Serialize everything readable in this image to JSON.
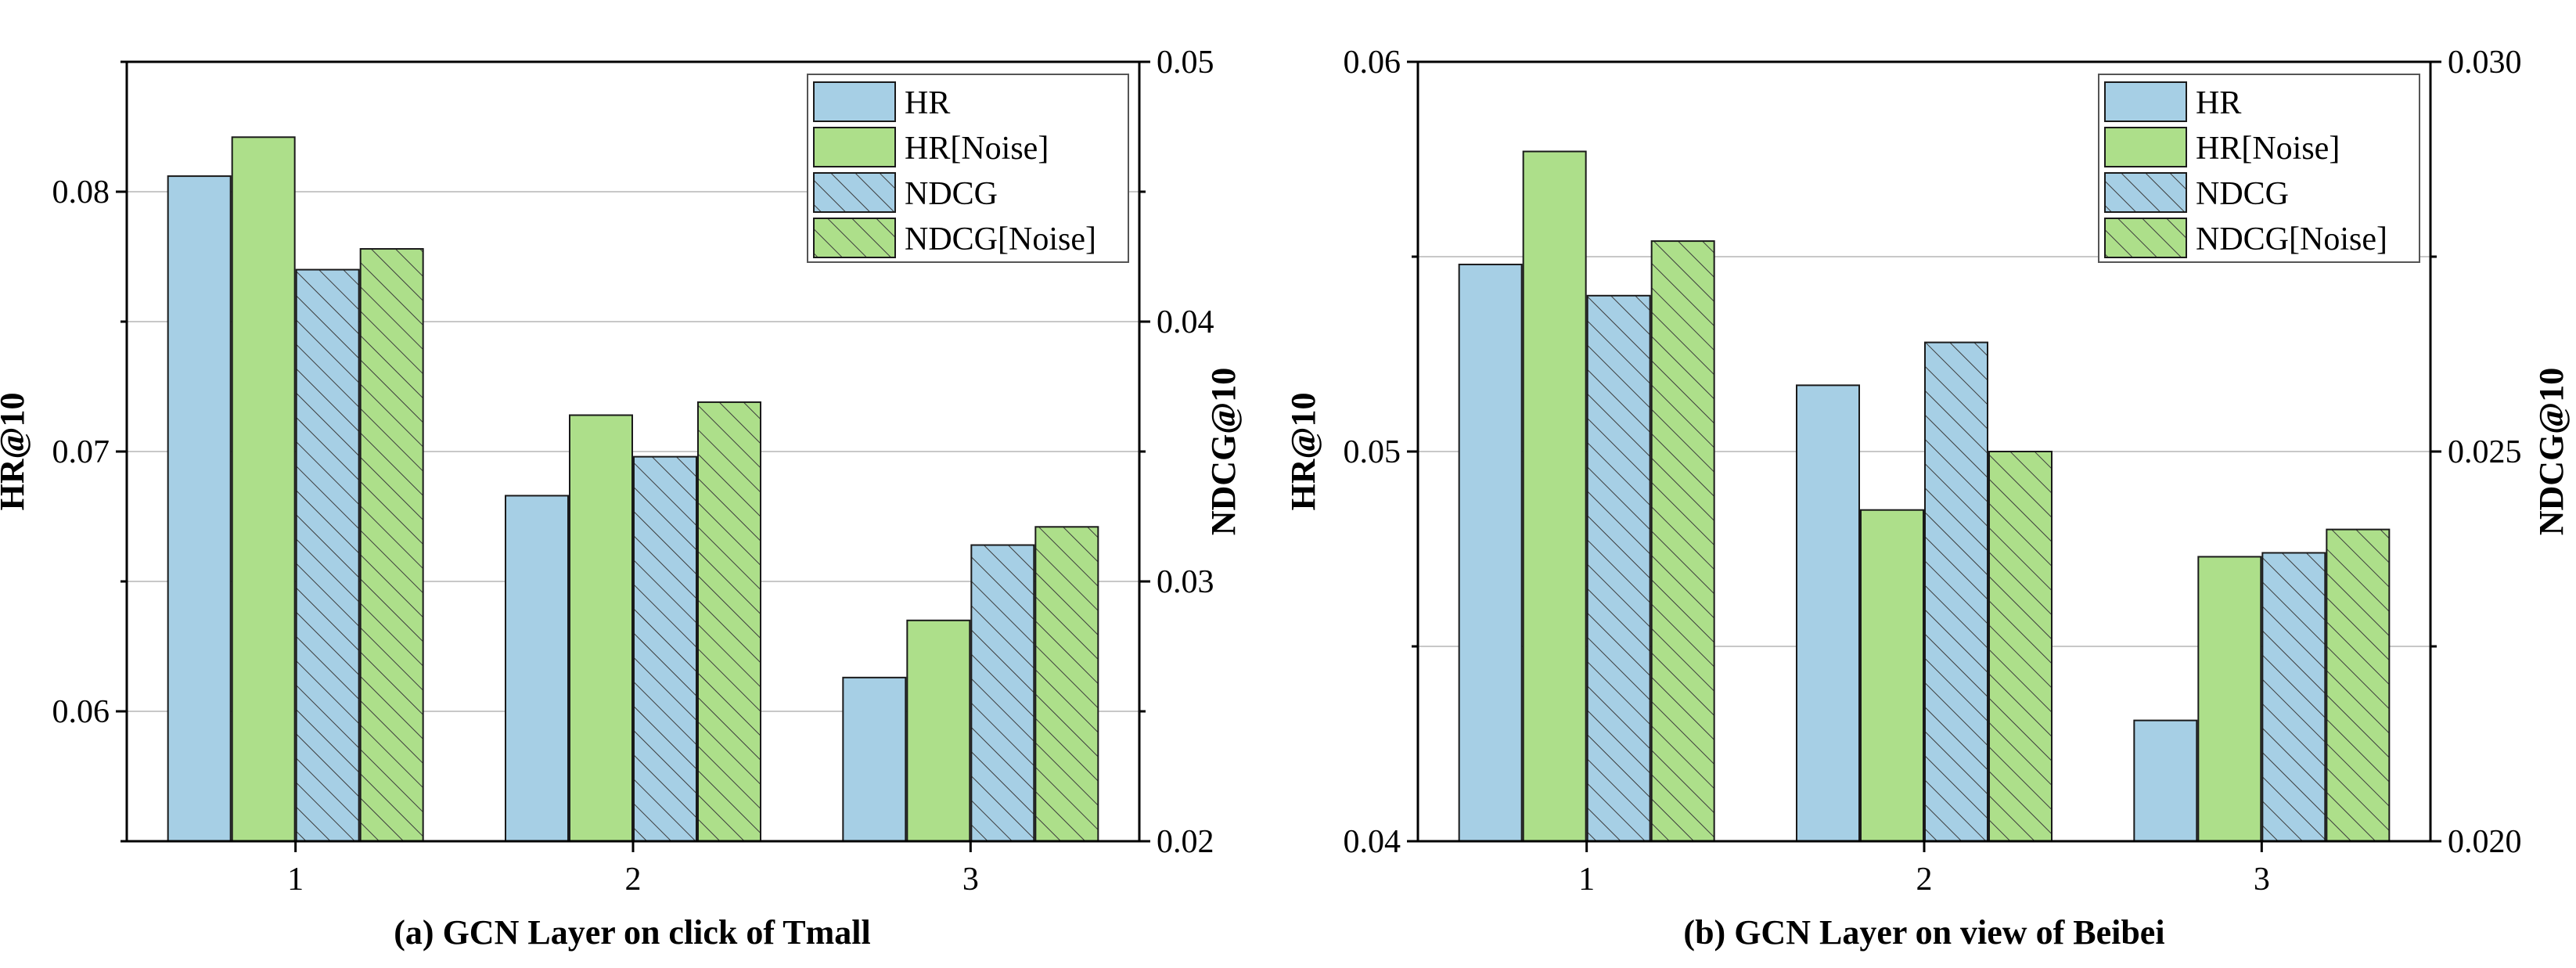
{
  "colors": {
    "hr": "#a6cfe5",
    "hr_noise": "#addf8a",
    "ndcg": "#a6cfe5",
    "ndcg_noise": "#addf8a",
    "grid": "#c8c8c8",
    "axis": "#000000"
  },
  "chart_data": [
    {
      "type": "bar",
      "caption": "(a) GCN Layer on click of Tmall",
      "categories": [
        "1",
        "2",
        "3"
      ],
      "ylabel_left": "HR@10",
      "ylabel_right": "NDCG@10",
      "ylim_left": [
        0.055,
        0.085
      ],
      "ylim_right": [
        0.02,
        0.05
      ],
      "yticks_left": [
        "0.06",
        "0.07",
        "0.08"
      ],
      "yticks_right": [
        "0.02",
        "0.03",
        "0.04",
        "0.05"
      ],
      "grid": true,
      "legend_position": "top-right",
      "series": [
        {
          "name": "HR",
          "axis": "left",
          "hatch": false,
          "color_key": "hr",
          "values": [
            0.0806,
            0.0683,
            0.0613
          ]
        },
        {
          "name": "HR[Noise]",
          "axis": "left",
          "hatch": false,
          "color_key": "hr_noise",
          "values": [
            0.0821,
            0.0714,
            0.0635
          ]
        },
        {
          "name": "NDCG",
          "axis": "right",
          "hatch": true,
          "color_key": "ndcg",
          "values": [
            0.042,
            0.0348,
            0.0314
          ]
        },
        {
          "name": "NDCG[Noise]",
          "axis": "right",
          "hatch": true,
          "color_key": "ndcg_noise",
          "values": [
            0.0428,
            0.0369,
            0.0321
          ]
        }
      ]
    },
    {
      "type": "bar",
      "caption": "(b) GCN Layer on view of Beibei",
      "categories": [
        "1",
        "2",
        "3"
      ],
      "ylabel_left": "HR@10",
      "ylabel_right": "NDCG@10",
      "ylim_left": [
        0.04,
        0.06
      ],
      "ylim_right": [
        0.02,
        0.03
      ],
      "yticks_left": [
        "0.04",
        "0.05",
        "0.06"
      ],
      "yticks_right": [
        "0.020",
        "0.025",
        "0.030"
      ],
      "grid": true,
      "legend_position": "top-right",
      "series": [
        {
          "name": "HR",
          "axis": "left",
          "hatch": false,
          "color_key": "hr",
          "values": [
            0.0548,
            0.0517,
            0.0431
          ]
        },
        {
          "name": "HR[Noise]",
          "axis": "left",
          "hatch": false,
          "color_key": "hr_noise",
          "values": [
            0.0577,
            0.0485,
            0.0473
          ]
        },
        {
          "name": "NDCG",
          "axis": "right",
          "hatch": true,
          "color_key": "ndcg",
          "values": [
            0.027,
            0.0264,
            0.0237
          ]
        },
        {
          "name": "NDCG[Noise]",
          "axis": "right",
          "hatch": true,
          "color_key": "ndcg_noise",
          "values": [
            0.0277,
            0.025,
            0.024
          ]
        }
      ]
    }
  ]
}
